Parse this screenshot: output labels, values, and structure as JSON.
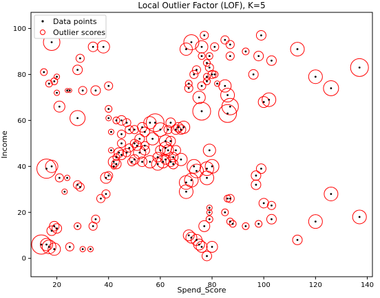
{
  "chart_data": {
    "type": "scatter",
    "title": "Local Outlier Factor (LOF), K=5",
    "xlabel": "Spend_Score",
    "ylabel": "Income",
    "xlim": [
      10,
      142
    ],
    "ylim": [
      -8,
      107
    ],
    "xticks": [
      "20",
      "40",
      "60",
      "80",
      "100",
      "120",
      "140"
    ],
    "yticks": [
      "0",
      "20",
      "40",
      "60",
      "80",
      "100"
    ],
    "legend": {
      "position": "top-left",
      "entries": [
        "Data points",
        "Outlier scores"
      ]
    },
    "colors": {
      "points": "#000000",
      "scores": "#ff0000"
    },
    "series": [
      {
        "name": "Data points",
        "points": [
          [
            18,
            94
          ],
          [
            22,
            97
          ],
          [
            29,
            87
          ],
          [
            28,
            82
          ],
          [
            34,
            92
          ],
          [
            38,
            92
          ],
          [
            40,
            75
          ],
          [
            35,
            73
          ],
          [
            30,
            73
          ],
          [
            25,
            73
          ],
          [
            24,
            73
          ],
          [
            20,
            79
          ],
          [
            19,
            77
          ],
          [
            17,
            76
          ],
          [
            15,
            81
          ],
          [
            20,
            72
          ],
          [
            21,
            66
          ],
          [
            28,
            61
          ],
          [
            16,
            39
          ],
          [
            18,
            40
          ],
          [
            21,
            35
          ],
          [
            24,
            35
          ],
          [
            28,
            32
          ],
          [
            29,
            31
          ],
          [
            23,
            29
          ],
          [
            37,
            26
          ],
          [
            39,
            28
          ],
          [
            40,
            36
          ],
          [
            39,
            35
          ],
          [
            42,
            40
          ],
          [
            42,
            42
          ],
          [
            43,
            44
          ],
          [
            41,
            47
          ],
          [
            41,
            55
          ],
          [
            40,
            61
          ],
          [
            40,
            65
          ],
          [
            43,
            60
          ],
          [
            45,
            60
          ],
          [
            47,
            59
          ],
          [
            50,
            56
          ],
          [
            48,
            56
          ],
          [
            45,
            54
          ],
          [
            45,
            50
          ],
          [
            44,
            46
          ],
          [
            43,
            41
          ],
          [
            45,
            45
          ],
          [
            47,
            46
          ],
          [
            48,
            48
          ],
          [
            50,
            50
          ],
          [
            51,
            49
          ],
          [
            52,
            52
          ],
          [
            53,
            57
          ],
          [
            54,
            55
          ],
          [
            56,
            59
          ],
          [
            57,
            52
          ],
          [
            54,
            49
          ],
          [
            54,
            47
          ],
          [
            52,
            46
          ],
          [
            50,
            43
          ],
          [
            49,
            42
          ],
          [
            53,
            42
          ],
          [
            56,
            42
          ],
          [
            59,
            41
          ],
          [
            61,
            42
          ],
          [
            59,
            44
          ],
          [
            60,
            47
          ],
          [
            62,
            48
          ],
          [
            62,
            51
          ],
          [
            63,
            56
          ],
          [
            64,
            59
          ],
          [
            66,
            56
          ],
          [
            67,
            57
          ],
          [
            68,
            56
          ],
          [
            69,
            57
          ],
          [
            60,
            56
          ],
          [
            58,
            59
          ],
          [
            64,
            51
          ],
          [
            66,
            47
          ],
          [
            65,
            44
          ],
          [
            64,
            42
          ],
          [
            65,
            41
          ],
          [
            63,
            47
          ],
          [
            62,
            43
          ],
          [
            68,
            43
          ],
          [
            73,
            40
          ],
          [
            74,
            38
          ],
          [
            70,
            33
          ],
          [
            72,
            34
          ],
          [
            78,
            35
          ],
          [
            78,
            39
          ],
          [
            80,
            40
          ],
          [
            70,
            29
          ],
          [
            79,
            47
          ],
          [
            76,
            64
          ],
          [
            75,
            70
          ],
          [
            71,
            74
          ],
          [
            71,
            76
          ],
          [
            73,
            80
          ],
          [
            74,
            82
          ],
          [
            70,
            91
          ],
          [
            72,
            94
          ],
          [
            76,
            92
          ],
          [
            77,
            97
          ],
          [
            76,
            88
          ],
          [
            79,
            88
          ],
          [
            81,
            92
          ],
          [
            78,
            85
          ],
          [
            79,
            83
          ],
          [
            80,
            80
          ],
          [
            76,
            75
          ],
          [
            81,
            80
          ],
          [
            78,
            79
          ],
          [
            78,
            77
          ],
          [
            82,
            76
          ],
          [
            85,
            75
          ],
          [
            86,
            71
          ],
          [
            87,
            66
          ],
          [
            86,
            63
          ],
          [
            87,
            88
          ],
          [
            85,
            95
          ],
          [
            87,
            93
          ],
          [
            93,
            90
          ],
          [
            98,
            88
          ],
          [
            99,
            97
          ],
          [
            103,
            86
          ],
          [
            96,
            80
          ],
          [
            100,
            68
          ],
          [
            102,
            69
          ],
          [
            113,
            91
          ],
          [
            120,
            79
          ],
          [
            126,
            74
          ],
          [
            137,
            83
          ],
          [
            97,
            36
          ],
          [
            99,
            39
          ],
          [
            97,
            32
          ],
          [
            100,
            24
          ],
          [
            103,
            23
          ],
          [
            87,
            26
          ],
          [
            86,
            26
          ],
          [
            85,
            20
          ],
          [
            87,
            16
          ],
          [
            88,
            15
          ],
          [
            93,
            14
          ],
          [
            98,
            15
          ],
          [
            103,
            17
          ],
          [
            120,
            16
          ],
          [
            126,
            28
          ],
          [
            137,
            18
          ],
          [
            113,
            8
          ],
          [
            71,
            10
          ],
          [
            72,
            9
          ],
          [
            74,
            8
          ],
          [
            75,
            6
          ],
          [
            76,
            5
          ],
          [
            77,
            14
          ],
          [
            80,
            5
          ],
          [
            78,
            1
          ],
          [
            79,
            17
          ],
          [
            79,
            20
          ],
          [
            79,
            22
          ],
          [
            19,
            14
          ],
          [
            20,
            13
          ],
          [
            18,
            12
          ],
          [
            16,
            6
          ],
          [
            17,
            5
          ],
          [
            19,
            4
          ],
          [
            25,
            5
          ],
          [
            28,
            14
          ],
          [
            30,
            4
          ],
          [
            33,
            4
          ],
          [
            35,
            17
          ],
          [
            34,
            14
          ],
          [
            14,
            6
          ]
        ]
      },
      {
        "name": "Outlier scores",
        "radii": [
          12,
          4,
          6,
          7,
          7,
          9,
          6,
          7,
          6,
          3,
          3,
          4,
          5,
          5,
          5,
          4,
          8,
          11,
          14,
          9,
          6,
          4,
          6,
          6,
          4,
          6,
          6,
          6,
          8,
          4,
          8,
          5,
          4,
          4,
          4,
          5,
          5,
          7,
          6,
          6,
          6,
          6,
          6,
          7,
          7,
          7,
          6,
          6,
          6,
          7,
          7,
          7,
          7,
          9,
          9,
          6,
          7,
          9,
          7,
          6,
          7,
          9,
          9,
          9,
          7,
          7,
          9,
          9,
          6,
          7,
          7,
          7,
          7,
          9,
          10,
          13,
          7,
          7,
          7,
          7,
          7,
          8,
          7,
          9,
          10,
          10,
          10,
          10,
          10,
          10,
          10,
          10,
          9,
          13,
          9,
          6,
          5,
          6,
          6,
          9,
          11,
          9,
          6,
          5,
          5,
          6,
          5,
          6,
          6,
          6,
          5,
          5,
          5,
          4,
          9,
          10,
          12,
          13,
          6,
          6,
          6,
          5,
          7,
          7,
          7,
          7,
          8,
          10,
          10,
          10,
          11,
          13,
          7,
          7,
          7,
          7,
          6,
          6,
          5,
          5,
          5,
          5,
          5,
          5,
          7,
          10,
          10,
          10,
          7,
          8,
          8,
          8,
          8,
          8,
          8,
          8,
          7,
          5,
          4,
          4,
          7,
          7,
          7,
          9,
          10,
          9,
          6,
          5,
          4,
          4,
          6,
          6,
          14
        ]
      }
    ]
  }
}
